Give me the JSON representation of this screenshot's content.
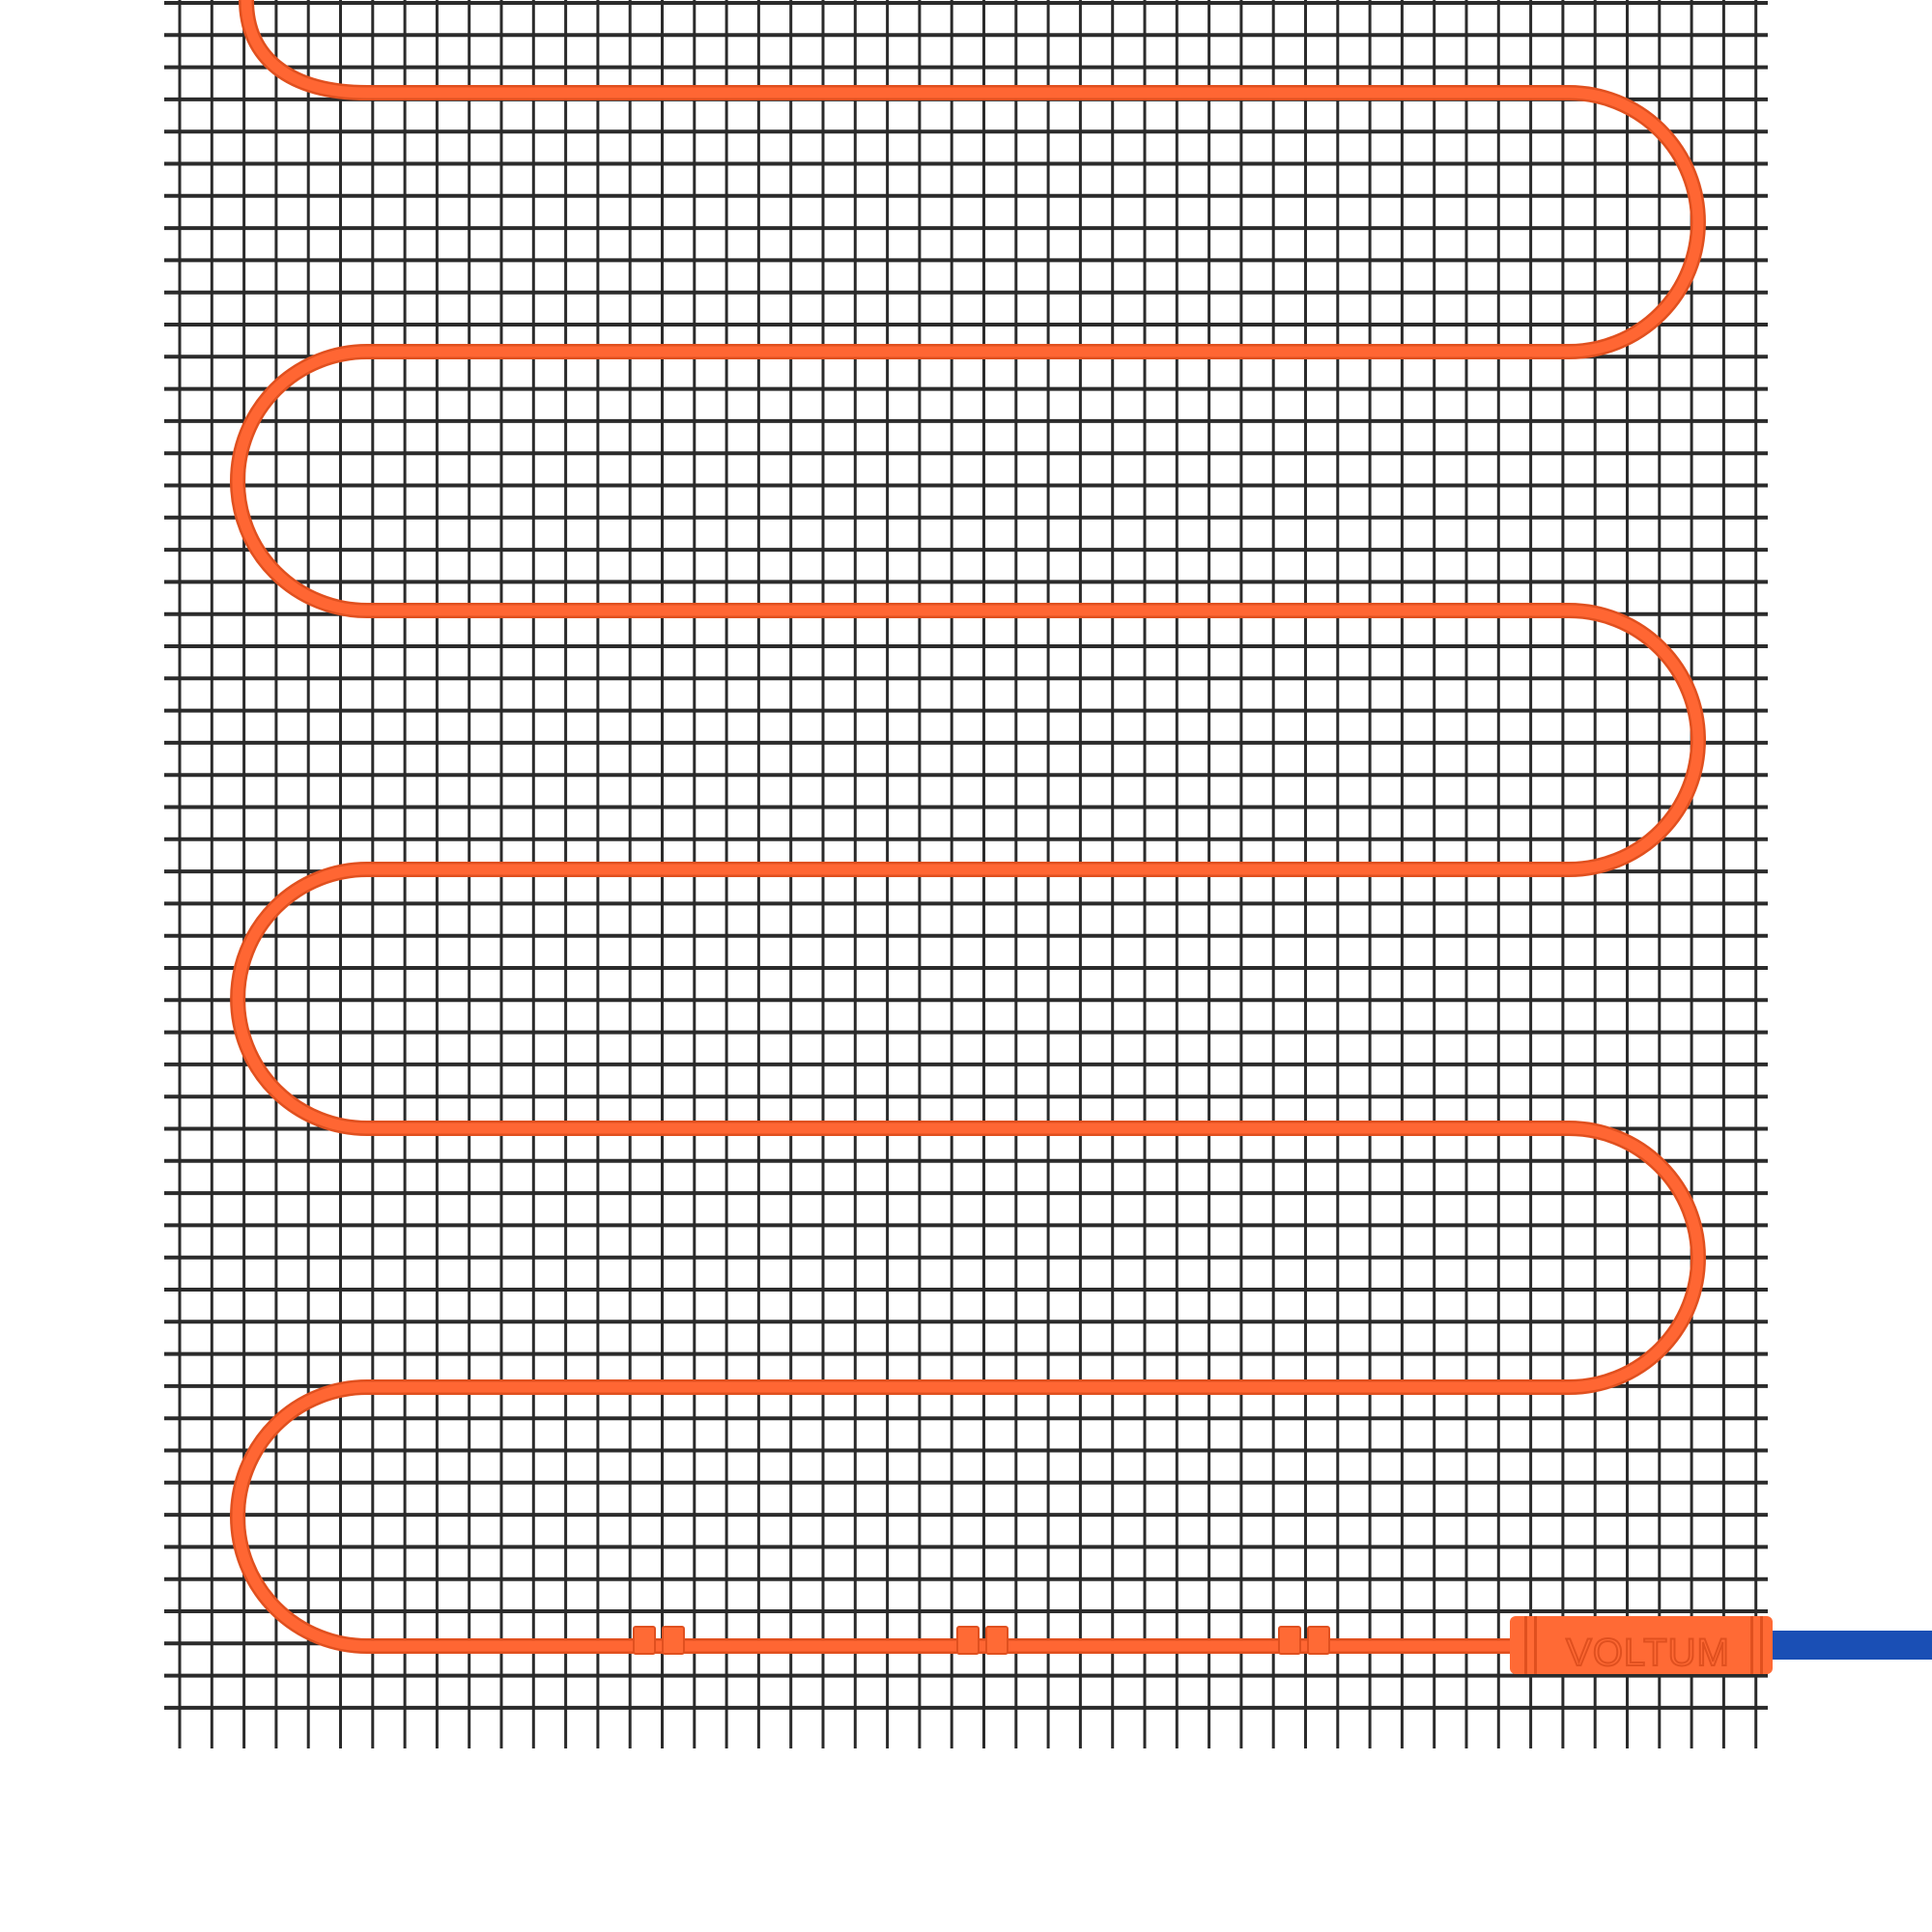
{
  "product": {
    "brand_label": "VOLTUM",
    "colors": {
      "background": "#ffffff",
      "mesh": "#2b2b2b",
      "cable": "#ff6633",
      "cable_shadow": "#e0501f",
      "connector": "#ff6a35",
      "power_lead": "#1a4fb5"
    },
    "cable_clips": 3
  }
}
